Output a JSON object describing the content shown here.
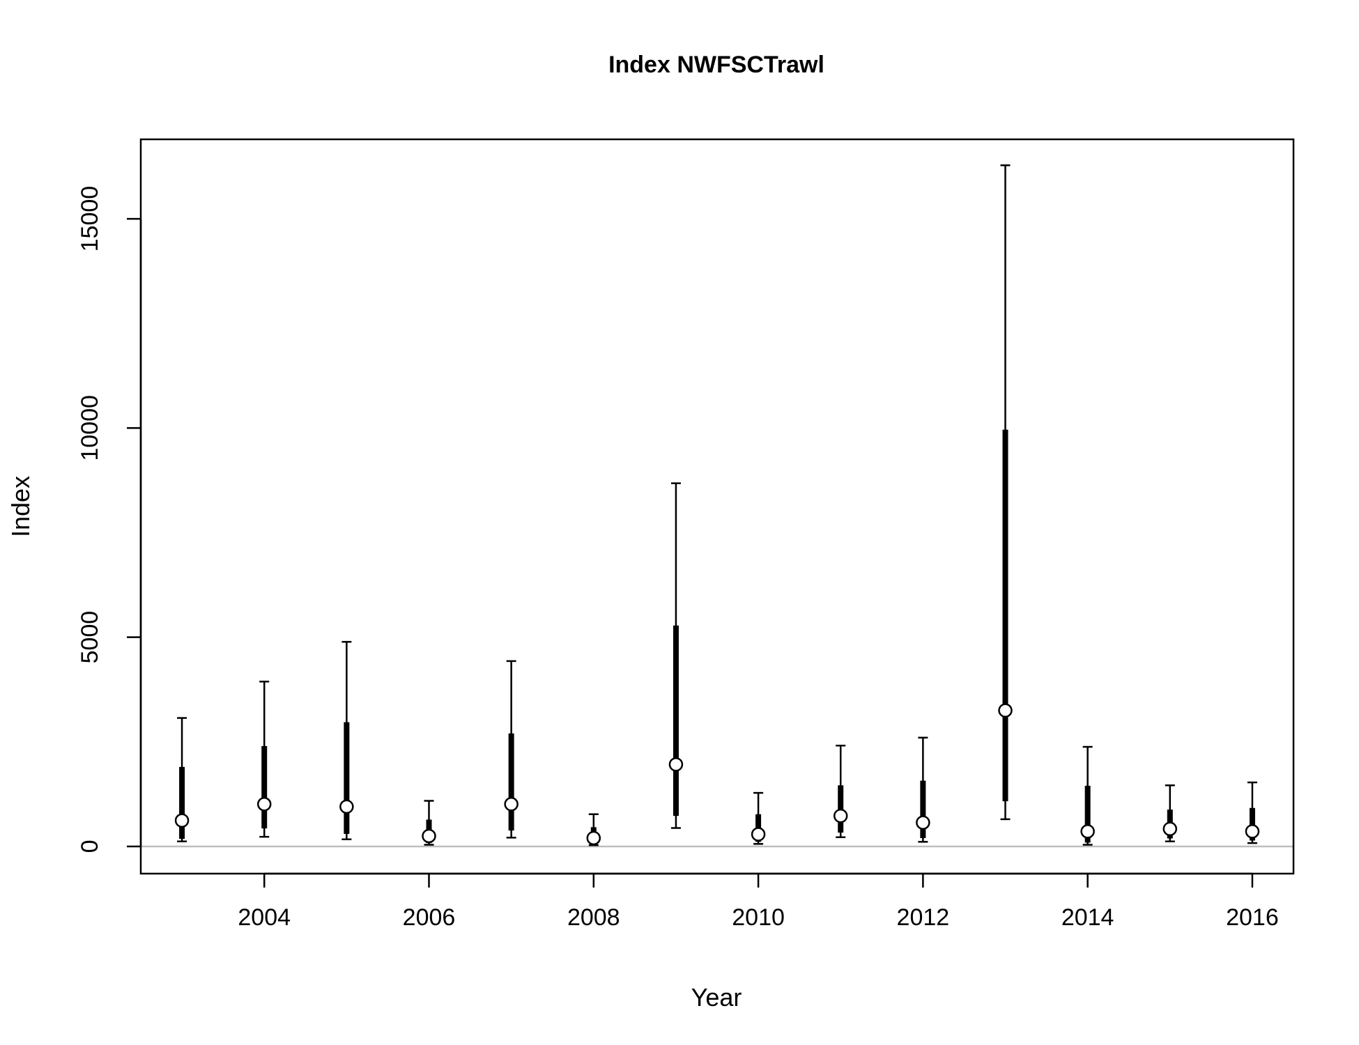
{
  "chart_data": {
    "type": "errorbar",
    "title": "Index NWFSCTrawl",
    "xlabel": "Year",
    "ylabel": "Index",
    "xlim": [
      2002.5,
      2016.5
    ],
    "ylim": [
      -650,
      16900
    ],
    "x_ticks": [
      2004,
      2006,
      2008,
      2010,
      2012,
      2014,
      2016
    ],
    "y_ticks": [
      0,
      5000,
      10000,
      15000
    ],
    "reference_line": 0,
    "colors": {
      "line": "#000000",
      "reference": "#bebebe",
      "point_fill": "#ffffff"
    },
    "points": [
      {
        "x": 2003,
        "y": 620,
        "inner": [
          180,
          1900
        ],
        "outer": [
          120,
          3070
        ]
      },
      {
        "x": 2004,
        "y": 1010,
        "inner": [
          430,
          2400
        ],
        "outer": [
          230,
          3940
        ]
      },
      {
        "x": 2005,
        "y": 950,
        "inner": [
          300,
          2970
        ],
        "outer": [
          170,
          4890
        ]
      },
      {
        "x": 2006,
        "y": 250,
        "inner": [
          80,
          640
        ],
        "outer": [
          40,
          1090
        ]
      },
      {
        "x": 2007,
        "y": 1010,
        "inner": [
          380,
          2700
        ],
        "outer": [
          210,
          4430
        ]
      },
      {
        "x": 2008,
        "y": 200,
        "inner": [
          60,
          460
        ],
        "outer": [
          30,
          770
        ]
      },
      {
        "x": 2009,
        "y": 1960,
        "inner": [
          730,
          5280
        ],
        "outer": [
          440,
          8680
        ]
      },
      {
        "x": 2010,
        "y": 290,
        "inner": [
          110,
          770
        ],
        "outer": [
          60,
          1280
        ]
      },
      {
        "x": 2011,
        "y": 730,
        "inner": [
          330,
          1460
        ],
        "outer": [
          220,
          2410
        ]
      },
      {
        "x": 2012,
        "y": 570,
        "inner": [
          200,
          1570
        ],
        "outer": [
          110,
          2600
        ]
      },
      {
        "x": 2013,
        "y": 3250,
        "inner": [
          1080,
          9960
        ],
        "outer": [
          650,
          16280
        ]
      },
      {
        "x": 2014,
        "y": 360,
        "inner": [
          90,
          1450
        ],
        "outer": [
          40,
          2380
        ]
      },
      {
        "x": 2015,
        "y": 420,
        "inner": [
          190,
          880
        ],
        "outer": [
          120,
          1460
        ]
      },
      {
        "x": 2016,
        "y": 360,
        "inner": [
          140,
          920
        ],
        "outer": [
          80,
          1530
        ]
      }
    ]
  }
}
